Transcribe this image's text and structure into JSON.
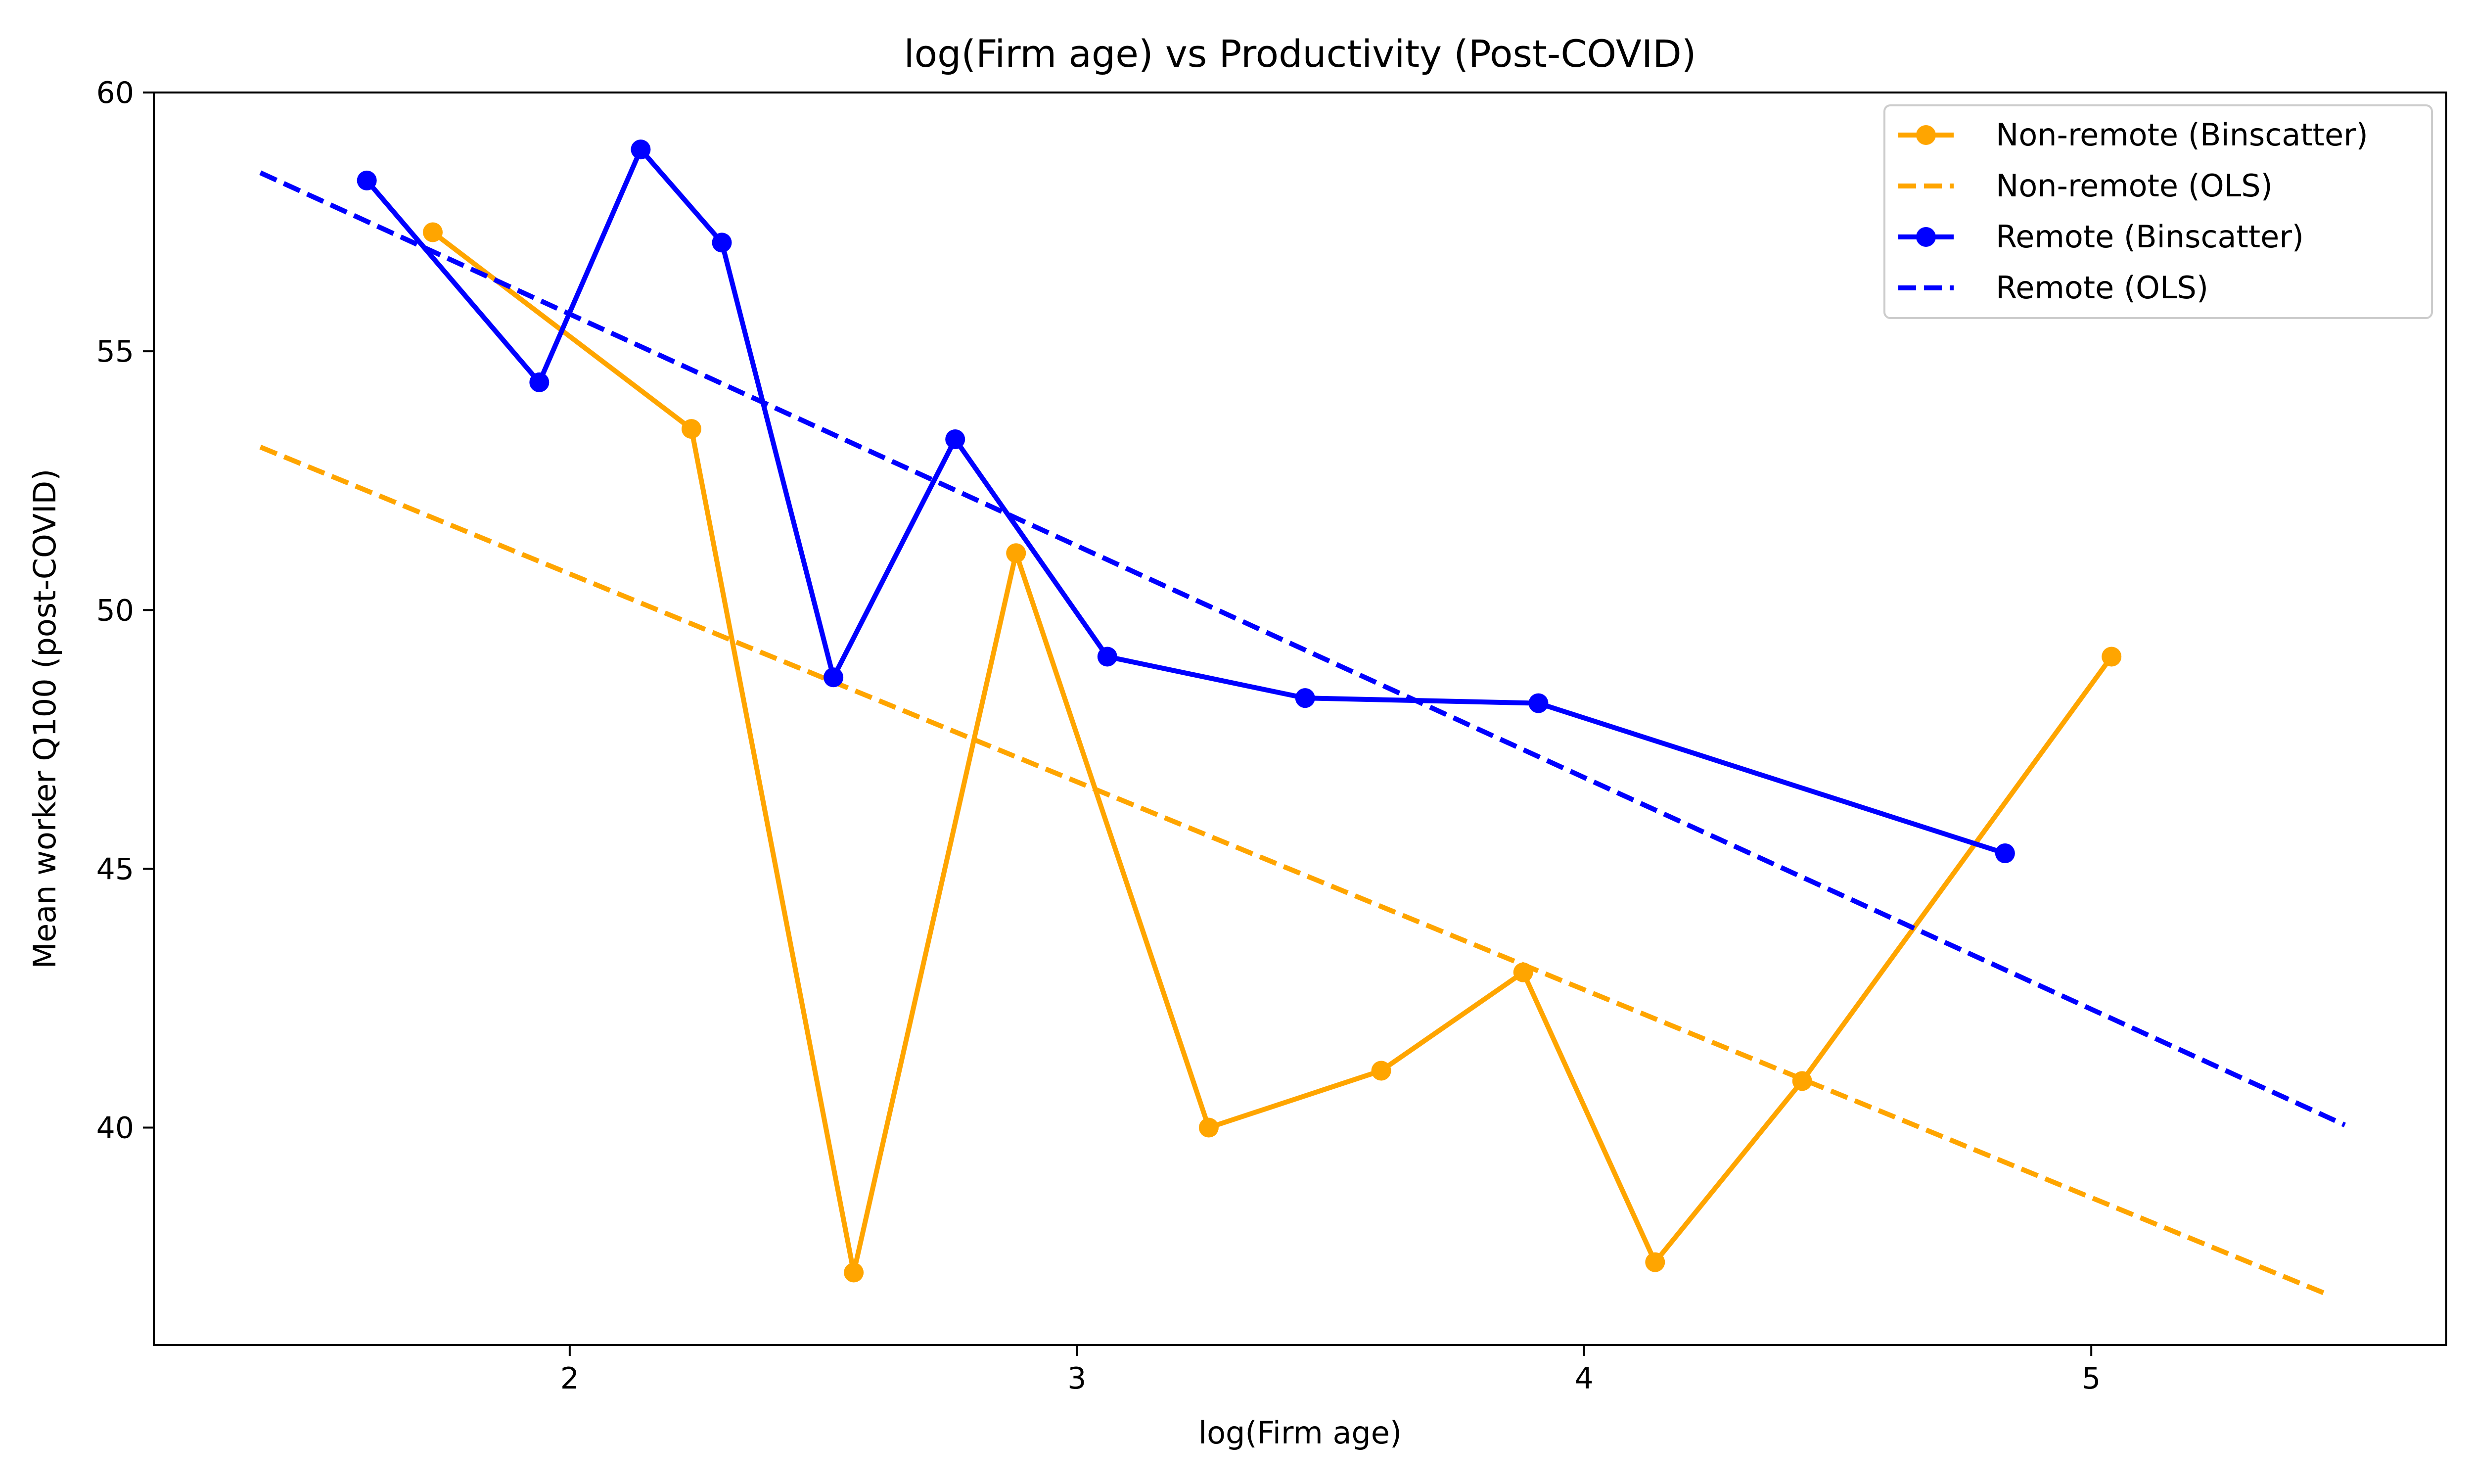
{
  "chart_data": {
    "type": "line",
    "title": "log(Firm age) vs Productivity (Post-COVID)",
    "xlabel": "log(Firm age)",
    "ylabel": "Mean worker Q100 (post-COVID)",
    "xlim": [
      1.18,
      5.7
    ],
    "ylim": [
      35.8,
      60
    ],
    "xticks": [
      2,
      3,
      4,
      5
    ],
    "yticks": [
      40,
      45,
      50,
      55,
      60
    ],
    "grid": false,
    "legend_position": "top-right",
    "colors": {
      "orange": "#FFA500",
      "blue": "#0000FF"
    },
    "series": [
      {
        "name": "Non-remote (Binscatter)",
        "style": "line-markers",
        "color": "#FFA500",
        "x": [
          1.73,
          2.24,
          2.56,
          2.88,
          3.26,
          3.6,
          3.88,
          4.14,
          4.43,
          5.04
        ],
        "y": [
          57.3,
          53.5,
          37.2,
          51.1,
          40.0,
          41.1,
          43.0,
          37.4,
          40.9,
          49.1
        ]
      },
      {
        "name": "Non-remote (OLS)",
        "style": "dashed",
        "color": "#FFA500",
        "x": [
          1.39,
          5.46
        ],
        "y": [
          53.15,
          36.8
        ]
      },
      {
        "name": "Remote (Binscatter)",
        "style": "line-markers",
        "color": "#0000FF",
        "x": [
          1.6,
          1.94,
          2.14,
          2.3,
          2.52,
          2.76,
          3.06,
          3.45,
          3.91,
          4.83
        ],
        "y": [
          58.3,
          54.4,
          58.9,
          57.1,
          48.7,
          53.3,
          49.1,
          48.3,
          48.2,
          45.3
        ]
      },
      {
        "name": "Remote (OLS)",
        "style": "dashed",
        "color": "#0000FF",
        "x": [
          1.39,
          5.5
        ],
        "y": [
          58.45,
          40.05
        ]
      }
    ]
  }
}
